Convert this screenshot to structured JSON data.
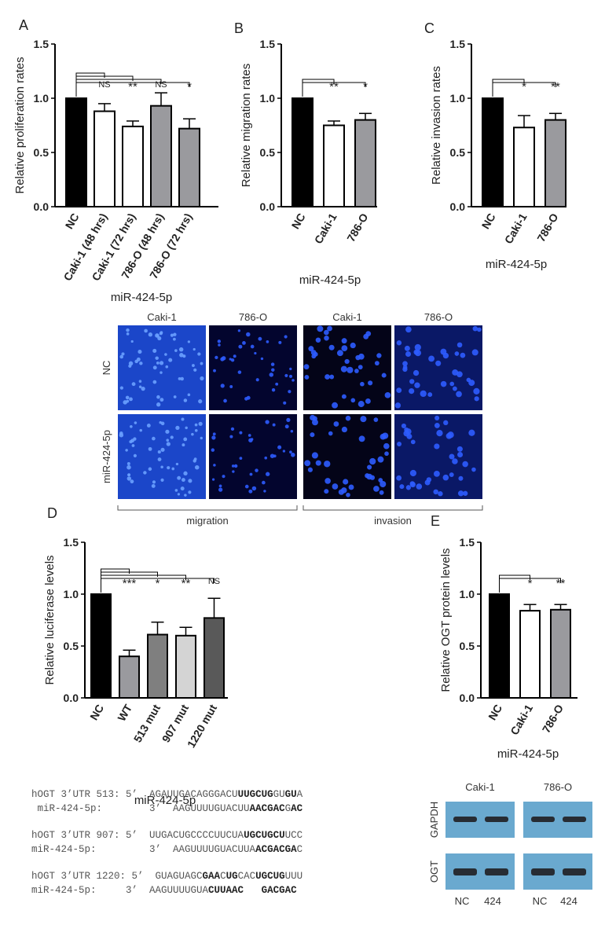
{
  "panels": {
    "A": "A",
    "B": "B",
    "C": "C",
    "D": "D",
    "E": "E"
  },
  "group_label": "miR-424-5p",
  "chart_data": [
    {
      "id": "A",
      "type": "bar",
      "ylabel": "Relative proliferation rates",
      "xlabel": "miR-424-5p",
      "ylim": [
        0,
        1.5
      ],
      "yticks": [
        "0.0",
        "0.5",
        "1.0",
        "1.5"
      ],
      "categories": [
        "NC",
        "Caki-1 (48 hrs)",
        "Caki-1 (72 hrs)",
        "786-O (48 hrs)",
        "786-O (72 hrs)"
      ],
      "values": [
        1.0,
        0.88,
        0.74,
        0.93,
        0.72
      ],
      "errors": [
        0,
        0.07,
        0.05,
        0.12,
        0.09
      ],
      "fills": [
        "#000000",
        "#ffffff",
        "#ffffff",
        "#9a9a9e",
        "#9a9a9e"
      ],
      "significance": [
        "",
        "NS",
        "**",
        "NS",
        "*"
      ]
    },
    {
      "id": "B",
      "type": "bar",
      "ylabel": "Relative migration rates",
      "xlabel": "miR-424-5p",
      "ylim": [
        0,
        1.5
      ],
      "yticks": [
        "0.0",
        "0.5",
        "1.0",
        "1.5"
      ],
      "categories": [
        "NC",
        "Caki-1",
        "786-O"
      ],
      "values": [
        1.0,
        0.75,
        0.8
      ],
      "errors": [
        0,
        0.04,
        0.06
      ],
      "fills": [
        "#000000",
        "#ffffff",
        "#9a9a9e"
      ],
      "significance": [
        "",
        "**",
        "*"
      ]
    },
    {
      "id": "C",
      "type": "bar",
      "ylabel": "Relative invasion rates",
      "xlabel": "miR-424-5p",
      "ylim": [
        0,
        1.5
      ],
      "yticks": [
        "0.0",
        "0.5",
        "1.0",
        "1.5"
      ],
      "categories": [
        "NC",
        "Caki-1",
        "786-O"
      ],
      "values": [
        1.0,
        0.73,
        0.8
      ],
      "errors": [
        0,
        0.11,
        0.06
      ],
      "fills": [
        "#000000",
        "#ffffff",
        "#9a9a9e"
      ],
      "significance": [
        "",
        "*",
        "**"
      ]
    },
    {
      "id": "D",
      "type": "bar",
      "ylabel": "Relative luciferase levels",
      "xlabel": "miR-424-5p",
      "ylim": [
        0,
        1.5
      ],
      "yticks": [
        "0.0",
        "0.5",
        "1.0",
        "1.5"
      ],
      "categories": [
        "NC",
        "WT",
        "513 mut",
        "907 mut",
        "1220 mut"
      ],
      "values": [
        1.0,
        0.4,
        0.61,
        0.6,
        0.77
      ],
      "errors": [
        0,
        0.06,
        0.12,
        0.08,
        0.19
      ],
      "fills": [
        "#000000",
        "#9a9a9e",
        "#7f7f7f",
        "#d4d4d4",
        "#595959"
      ],
      "significance": [
        "",
        "***",
        "*",
        "**",
        "NS"
      ]
    },
    {
      "id": "E",
      "type": "bar",
      "ylabel": "Relative OGT protein levels",
      "xlabel": "miR-424-5p",
      "ylim": [
        0,
        1.5
      ],
      "yticks": [
        "0.0",
        "0.5",
        "1.0",
        "1.5"
      ],
      "categories": [
        "NC",
        "Caki-1",
        "786-O"
      ],
      "values": [
        1.0,
        0.84,
        0.85
      ],
      "errors": [
        0,
        0.06,
        0.05
      ],
      "fills": [
        "#000000",
        "#ffffff",
        "#9a9a9e"
      ],
      "significance": [
        "",
        "*",
        "**"
      ]
    }
  ],
  "micrographs": {
    "column_labels": [
      "Caki-1",
      "786-O",
      "Caki-1",
      "786-O"
    ],
    "row_labels": [
      "NC",
      "miR-424-5p"
    ],
    "group_labels": [
      "migration",
      "invasion"
    ]
  },
  "sequences": [
    {
      "top_prefix": "hOGT 3’UTR 513: 5’  ",
      "top": [
        [
          "AGAUUGACAGGGACU",
          false
        ],
        [
          "UUGCUG",
          true
        ],
        [
          "GU",
          false
        ],
        [
          "GU",
          true
        ],
        [
          "A",
          false
        ]
      ],
      "bottom_prefix": " miR-424-5p:        3’  ",
      "bottom": [
        [
          "AAGUUUUGUACUU",
          false
        ],
        [
          "AACGAC",
          true
        ],
        [
          "G",
          false
        ],
        [
          "AC",
          true
        ]
      ]
    },
    {
      "top_prefix": "hOGT 3’UTR 907: 5’  ",
      "top": [
        [
          "UUGACUGCCCCUUCUA",
          false
        ],
        [
          "UGCUGCU",
          true
        ],
        [
          "UCC",
          false
        ]
      ],
      "bottom_prefix": "miR-424-5p:         3’  ",
      "bottom": [
        [
          "AAGUUUUGUACUUA",
          false
        ],
        [
          "ACGACGA",
          true
        ],
        [
          "C",
          false
        ]
      ]
    },
    {
      "top_prefix": "hOGT 3’UTR 1220: 5’  ",
      "top": [
        [
          "GUAGUAGC",
          false
        ],
        [
          "GAA",
          true
        ],
        [
          "C",
          false
        ],
        [
          "UG",
          true
        ],
        [
          "CAC",
          false
        ],
        [
          "UGCUG",
          true
        ],
        [
          "UUU",
          false
        ]
      ],
      "bottom_prefix": "miR-424-5p:     3’  ",
      "bottom": [
        [
          "AAGUUUUGUA",
          false
        ],
        [
          "CUUAAC",
          true
        ],
        [
          "   ",
          false
        ],
        [
          "GACGAC",
          true
        ]
      ]
    }
  ],
  "western": {
    "cell_lines": [
      "Caki-1",
      "786-O"
    ],
    "rows": [
      "GAPDH",
      "OGT"
    ],
    "lanes": [
      "NC",
      "424",
      "NC",
      "424"
    ]
  }
}
